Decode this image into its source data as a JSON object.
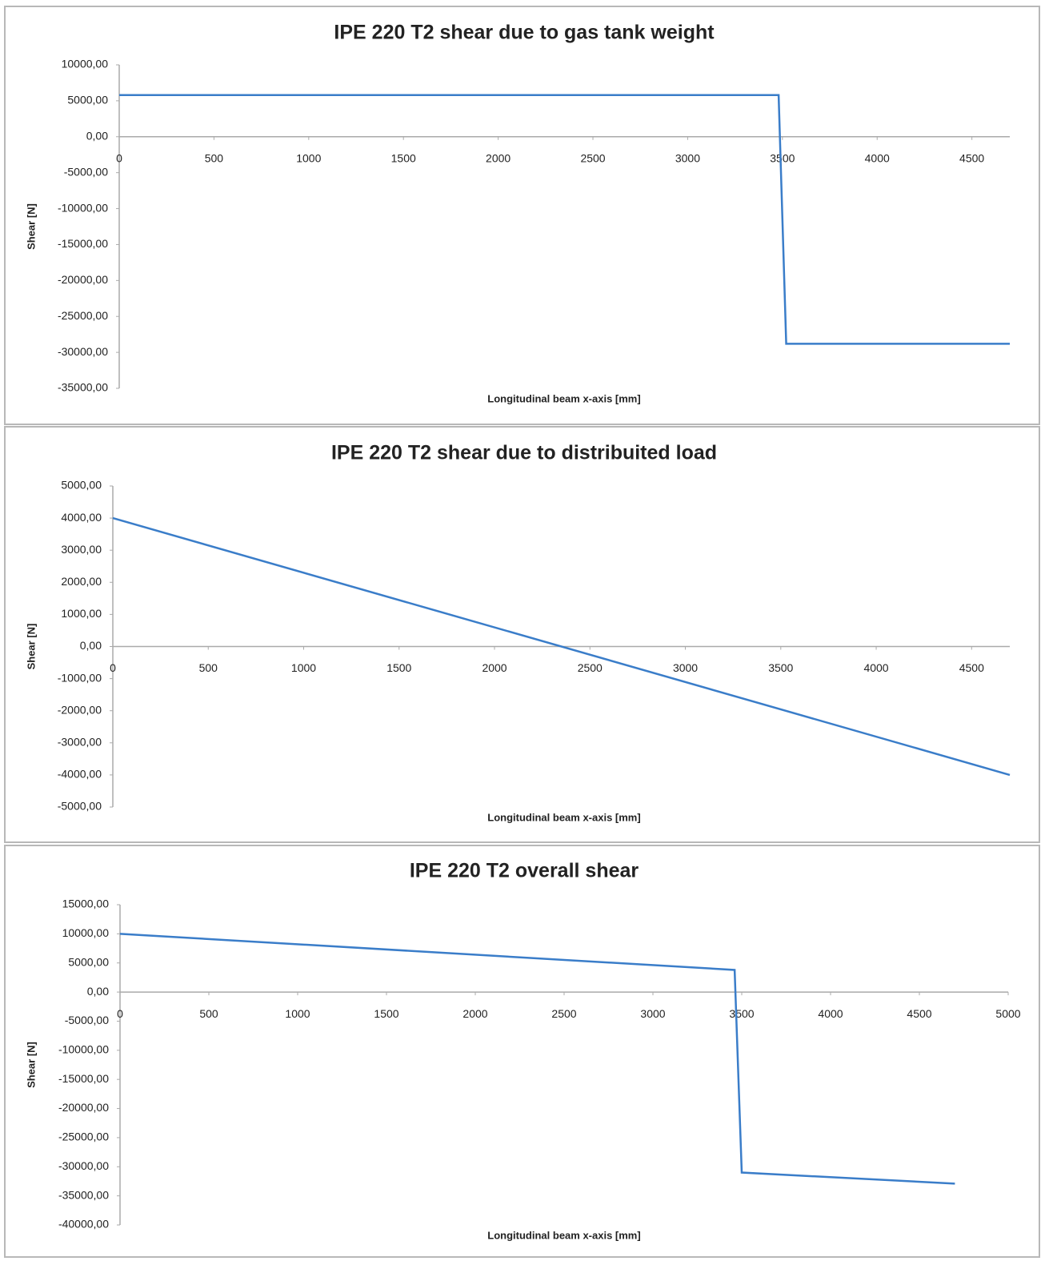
{
  "chart_data": [
    {
      "type": "line",
      "title": "IPE 220  T2  shear due to gas tank weight",
      "y_label": "Shear [N]",
      "x_label": "Longitudinal  beam x-axis  [mm]",
      "color": "#3a7dc9",
      "x": [
        0,
        3480,
        3520,
        4700
      ],
      "values": [
        5800,
        5800,
        -28800,
        -28800
      ],
      "xlim": [
        0,
        4700
      ],
      "xticks": [
        0,
        500,
        1000,
        1500,
        2000,
        2500,
        3000,
        3500,
        4000,
        4500
      ],
      "ylim": [
        -35000,
        10000
      ],
      "yticks": [
        {
          "value": -35000,
          "label": "-35000,00"
        },
        {
          "value": -30000,
          "label": "-30000,00"
        },
        {
          "value": -25000,
          "label": "-25000,00"
        },
        {
          "value": -20000,
          "label": "-20000,00"
        },
        {
          "value": -15000,
          "label": "-15000,00"
        },
        {
          "value": -10000,
          "label": "-10000,00"
        },
        {
          "value": -5000,
          "label": "-5000,00"
        },
        {
          "value": 0,
          "label": "0,00"
        },
        {
          "value": 5000,
          "label": "5000,00"
        },
        {
          "value": 10000,
          "label": "10000,00"
        }
      ]
    },
    {
      "type": "line",
      "title": "IPE 220  T2  shear due to distribuited load",
      "y_label": "Shear [N]",
      "x_label": "Longitudinal  beam x-axis  [mm]",
      "color": "#3a7dc9",
      "x": [
        0,
        4700
      ],
      "values": [
        4000,
        -4000
      ],
      "xlim": [
        0,
        4700
      ],
      "xticks": [
        0,
        500,
        1000,
        1500,
        2000,
        2500,
        3000,
        3500,
        4000,
        4500
      ],
      "ylim": [
        -5000,
        5000
      ],
      "yticks": [
        {
          "value": -5000,
          "label": "-5000,00"
        },
        {
          "value": -4000,
          "label": "-4000,00"
        },
        {
          "value": -3000,
          "label": "-3000,00"
        },
        {
          "value": -2000,
          "label": "-2000,00"
        },
        {
          "value": -1000,
          "label": "-1000,00"
        },
        {
          "value": 0,
          "label": "0,00"
        },
        {
          "value": 1000,
          "label": "1000,00"
        },
        {
          "value": 2000,
          "label": "2000,00"
        },
        {
          "value": 3000,
          "label": "3000,00"
        },
        {
          "value": 4000,
          "label": "4000,00"
        },
        {
          "value": 5000,
          "label": "5000,00"
        }
      ]
    },
    {
      "type": "line",
      "title": "IPE 220 T2 overall shear",
      "y_label": "Shear [N]",
      "x_label": "Longitudinal  beam x-axis  [mm]",
      "color": "#3a7dc9",
      "x": [
        0,
        3460,
        3500,
        4700
      ],
      "values": [
        10000,
        3800,
        -31000,
        -32900
      ],
      "xlim": [
        0,
        5000
      ],
      "xticks": [
        0,
        500,
        1000,
        1500,
        2000,
        2500,
        3000,
        3500,
        4000,
        4500,
        5000
      ],
      "ylim": [
        -40000,
        15000
      ],
      "yticks": [
        {
          "value": -40000,
          "label": "-40000,00"
        },
        {
          "value": -35000,
          "label": "-35000,00"
        },
        {
          "value": -30000,
          "label": "-30000,00"
        },
        {
          "value": -25000,
          "label": "-25000,00"
        },
        {
          "value": -20000,
          "label": "-20000,00"
        },
        {
          "value": -15000,
          "label": "-15000,00"
        },
        {
          "value": -10000,
          "label": "-10000,00"
        },
        {
          "value": -5000,
          "label": "-5000,00"
        },
        {
          "value": 0,
          "label": "0,00"
        },
        {
          "value": 5000,
          "label": "5000,00"
        },
        {
          "value": 10000,
          "label": "10000,00"
        },
        {
          "value": 15000,
          "label": "15000,00"
        }
      ]
    }
  ]
}
